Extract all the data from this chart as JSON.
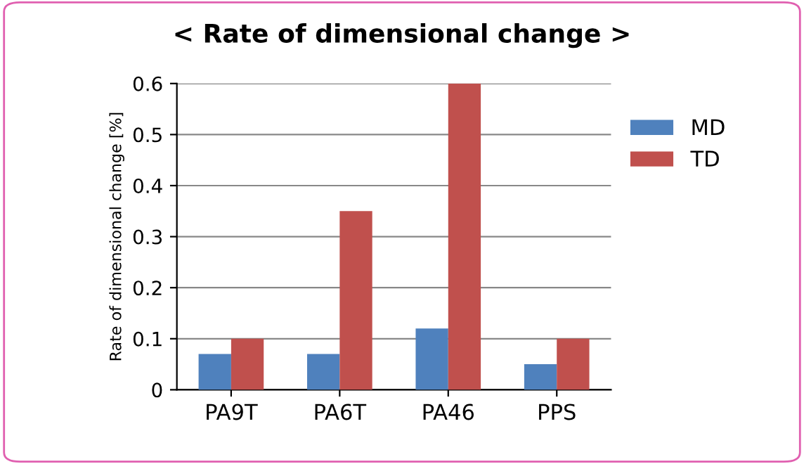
{
  "chart_data": {
    "type": "bar",
    "title": "< Rate of dimensional change >",
    "ylabel": "Rate of dimensional change [%]",
    "categories": [
      "PA9T",
      "PA6T",
      "PA46",
      "PPS"
    ],
    "series": [
      {
        "name": "MD",
        "color": "#4f81bd",
        "values": [
          0.07,
          0.07,
          0.12,
          0.05
        ]
      },
      {
        "name": "TD",
        "color": "#c0504d",
        "values": [
          0.1,
          0.35,
          0.6,
          0.1
        ]
      }
    ],
    "ylim": [
      0,
      0.6
    ],
    "yticks": [
      0,
      0.1,
      0.2,
      0.3,
      0.4,
      0.5,
      0.6
    ],
    "grid": "y",
    "legend": "right"
  }
}
